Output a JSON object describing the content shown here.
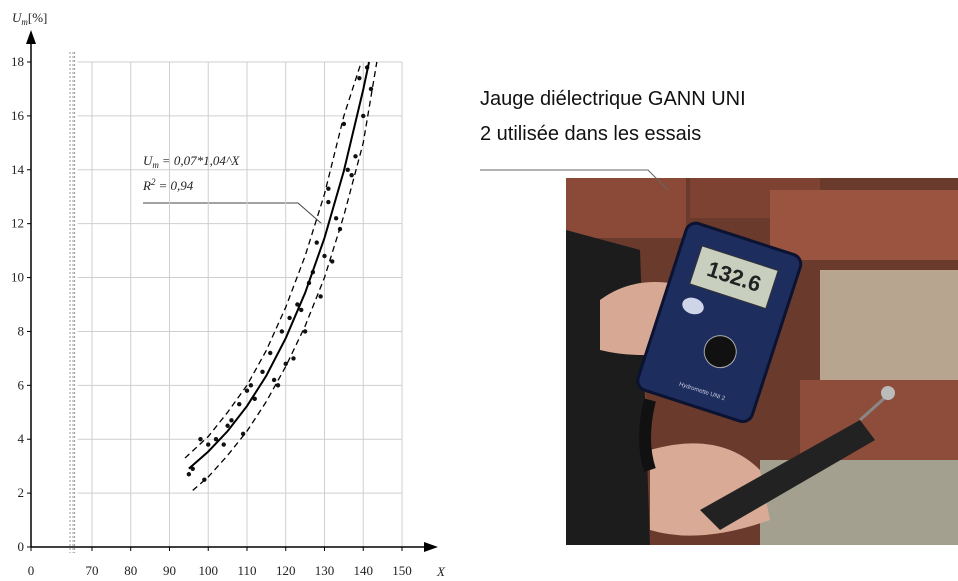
{
  "chart_data": {
    "type": "scatter",
    "y_label": [
      "U",
      "m",
      "[%]"
    ],
    "x_label": "X",
    "equation": [
      "U",
      "m",
      "= 0,07*1,04^X"
    ],
    "r_squared": [
      "R",
      "2",
      "= 0,94"
    ],
    "xlim": [
      0,
      150
    ],
    "x_break": [
      5,
      65
    ],
    "xticks": [
      0,
      70,
      80,
      90,
      100,
      110,
      120,
      130,
      140,
      150
    ],
    "ylim": [
      0,
      18
    ],
    "yticks": [
      0,
      2,
      4,
      6,
      8,
      10,
      12,
      14,
      16,
      18
    ],
    "grid": true,
    "series": [
      {
        "type": "scatter",
        "color": "#111111",
        "x": [
          95,
          96,
          98,
          99,
          100,
          102,
          104,
          105,
          106,
          108,
          109,
          110,
          111,
          112,
          114,
          116,
          117,
          118,
          119,
          120,
          121,
          122,
          123,
          124,
          125,
          126,
          127,
          128,
          129,
          130,
          131,
          131,
          132,
          133,
          134,
          135,
          136,
          137,
          138,
          139,
          140,
          141,
          142
        ],
        "values": [
          2.7,
          2.9,
          4.0,
          2.5,
          3.8,
          4.0,
          3.8,
          4.5,
          4.7,
          5.3,
          4.2,
          5.8,
          6.0,
          5.5,
          6.5,
          7.2,
          6.2,
          6.0,
          8.0,
          6.8,
          8.5,
          7.0,
          9.0,
          8.8,
          8.0,
          9.8,
          10.2,
          11.3,
          9.3,
          10.8,
          13.3,
          12.8,
          10.6,
          12.2,
          11.8,
          15.7,
          14.0,
          13.8,
          14.5,
          17.4,
          16.0,
          17.8,
          17.0
        ]
      },
      {
        "type": "line",
        "color": "#000000",
        "dashed": false,
        "x": [
          95,
          100,
          105,
          110,
          115,
          120,
          125,
          130,
          135,
          140,
          141.5
        ],
        "values": [
          2.91,
          3.54,
          4.3,
          5.23,
          6.36,
          7.75,
          9.43,
          11.47,
          13.96,
          16.98,
          18.0
        ]
      },
      {
        "type": "line",
        "color": "#000000",
        "dashed": true,
        "x": [
          94,
          100,
          105,
          110,
          115,
          120,
          125,
          130,
          135,
          139.5
        ],
        "values": [
          3.3,
          4.1,
          5.0,
          6.0,
          7.3,
          8.9,
          10.8,
          13.1,
          16.0,
          18.0
        ]
      },
      {
        "type": "line",
        "color": "#000000",
        "dashed": true,
        "x": [
          96,
          100,
          105,
          110,
          115,
          120,
          125,
          130,
          135,
          140,
          143.5
        ],
        "values": [
          2.1,
          2.6,
          3.4,
          4.3,
          5.4,
          6.7,
          8.2,
          10.0,
          12.3,
          15.0,
          18.0
        ]
      }
    ]
  },
  "photo": {
    "caption": [
      "Jauge diélectrique GANN UNI",
      "2 utilisée dans les essais"
    ],
    "display": "132.6",
    "device_label": "Hydromette UNI 2"
  }
}
